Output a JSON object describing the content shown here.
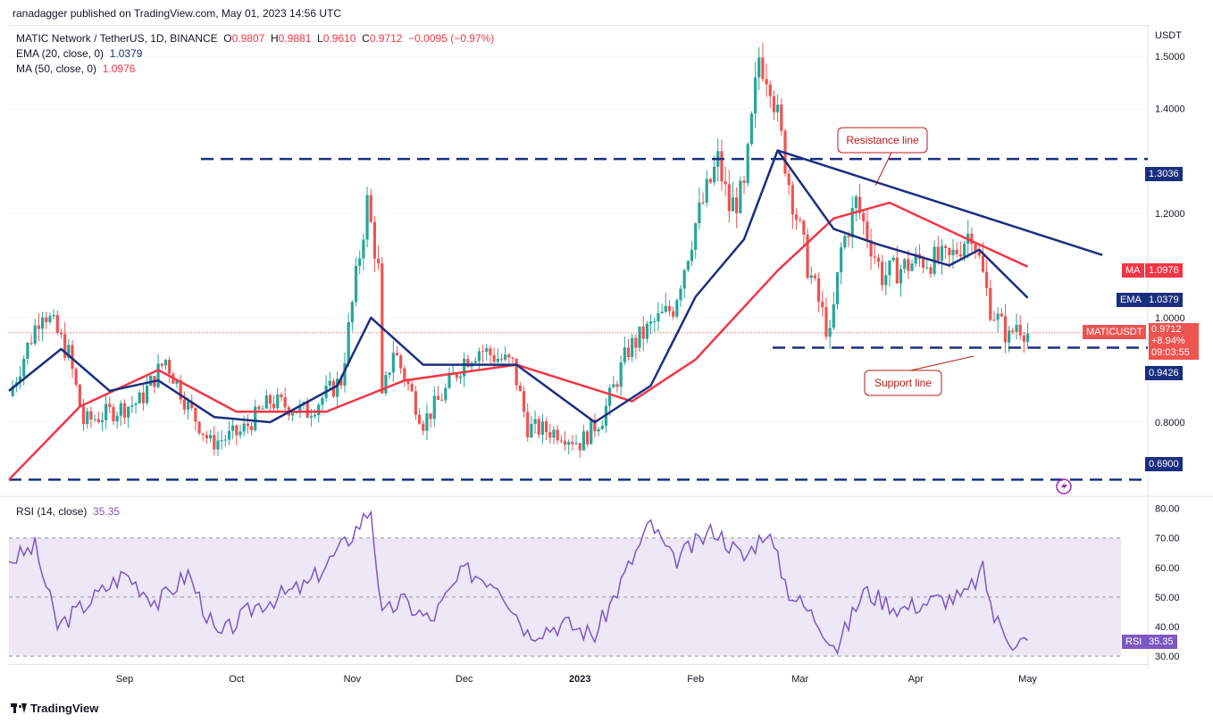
{
  "publisher_line": "ranadagger published on TradingView.com, May 01, 2023 14:56 UTC",
  "legend": {
    "symbol": "MATIC Network / TetherUS, 1D, BINANCE",
    "o_label": "O",
    "o": "0.9807",
    "h_label": "H",
    "h": "0.9881",
    "l_label": "L",
    "l": "0.9610",
    "c_label": "C",
    "c": "0.9712",
    "change": "−0.0095 (−0.97%)",
    "ema_label": "EMA (20, close, 0)",
    "ema_value": "1.0379",
    "ma_label": "MA (50, close, 0)",
    "ma_value": "1.0976",
    "rsi_label": "RSI (14, close)",
    "rsi_value": "35.35"
  },
  "axis": {
    "currency": "USDT",
    "price_ticks": [
      "1.5000",
      "1.4000",
      "1.2000",
      "1.0000",
      "0.8000"
    ],
    "rsi_ticks": [
      "80.00",
      "70.00",
      "60.00",
      "50.00",
      "40.00",
      "30.00"
    ],
    "time_ticks": [
      "Sep",
      "Oct",
      "Nov",
      "Dec",
      "2023",
      "Feb",
      "Mar",
      "Apr",
      "May"
    ]
  },
  "tags": {
    "resistance_level": "1.3036",
    "ma": {
      "label": "MA",
      "value": "1.0976"
    },
    "ema": {
      "label": "EMA",
      "value": "1.0379"
    },
    "symbol": {
      "label": "MATICUSDT",
      "price": "0.9712",
      "change": "+8.94%",
      "countdown": "09:03:55"
    },
    "support_level": "0.9426",
    "bottom_level": "0.6900",
    "rsi": {
      "label": "RSI",
      "value": "35.35"
    }
  },
  "annotations": {
    "resistance": "Resistance line",
    "support": "Support line"
  },
  "footer": "TradingView",
  "colors": {
    "up": "#26a69a",
    "down": "#ef5350",
    "ema": "#1a2f80",
    "ma": "#f23645",
    "level_line": "#1a2f80",
    "rsi_line": "#7e57c2",
    "rsi_band": "#ede7f6"
  },
  "chart_data": [
    {
      "type": "candlestick",
      "title": "MATIC Network / TetherUS, 1D, BINANCE",
      "ylabel": "USDT",
      "ylim": [
        0.66,
        1.56
      ],
      "x_range": [
        "2022-08-01",
        "2023-05-26"
      ],
      "horizontal_levels": [
        1.3036,
        0.9426,
        0.69
      ],
      "resistance_line": {
        "from": [
          "2023-02-23",
          1.32
        ],
        "to": [
          "2023-05-21",
          1.12
        ]
      },
      "ohlc_anchors": [
        [
          "2022-08-01",
          0.85
        ],
        [
          "2022-08-10",
          1.02
        ],
        [
          "2022-08-17",
          0.93
        ],
        [
          "2022-08-21",
          0.8
        ],
        [
          "2022-09-05",
          0.84
        ],
        [
          "2022-09-12",
          0.92
        ],
        [
          "2022-09-18",
          0.83
        ],
        [
          "2022-09-24",
          0.76
        ],
        [
          "2022-10-02",
          0.78
        ],
        [
          "2022-10-10",
          0.84
        ],
        [
          "2022-10-20",
          0.82
        ],
        [
          "2022-10-29",
          0.88
        ],
        [
          "2022-11-05",
          1.22
        ],
        [
          "2022-11-08",
          1.09
        ],
        [
          "2022-11-09",
          0.84
        ],
        [
          "2022-11-12",
          0.94
        ],
        [
          "2022-11-20",
          0.8
        ],
        [
          "2022-11-26",
          0.86
        ],
        [
          "2022-12-01",
          0.92
        ],
        [
          "2022-12-05",
          0.94
        ],
        [
          "2022-12-14",
          0.91
        ],
        [
          "2022-12-18",
          0.79
        ],
        [
          "2022-12-27",
          0.78
        ],
        [
          "2023-01-01",
          0.76
        ],
        [
          "2023-01-07",
          0.81
        ],
        [
          "2023-01-14",
          0.94
        ],
        [
          "2023-01-21",
          0.99
        ],
        [
          "2023-01-26",
          1.02
        ],
        [
          "2023-02-01",
          1.18
        ],
        [
          "2023-02-07",
          1.3
        ],
        [
          "2023-02-10",
          1.21
        ],
        [
          "2023-02-14",
          1.24
        ],
        [
          "2023-02-18",
          1.5
        ],
        [
          "2023-02-21",
          1.46
        ],
        [
          "2023-02-26",
          1.26
        ],
        [
          "2023-03-03",
          1.1
        ],
        [
          "2023-03-09",
          0.96
        ],
        [
          "2023-03-12",
          1.13
        ],
        [
          "2023-03-16",
          1.22
        ],
        [
          "2023-03-23",
          1.08
        ],
        [
          "2023-04-02",
          1.11
        ],
        [
          "2023-04-10",
          1.11
        ],
        [
          "2023-04-16",
          1.17
        ],
        [
          "2023-04-21",
          1.02
        ],
        [
          "2023-04-26",
          0.96
        ],
        [
          "2023-04-28",
          0.99
        ],
        [
          "2023-05-01",
          0.9712
        ]
      ],
      "ema20": [
        [
          "2022-08-01",
          0.86
        ],
        [
          "2022-08-15",
          0.94
        ],
        [
          "2022-08-28",
          0.86
        ],
        [
          "2022-09-10",
          0.88
        ],
        [
          "2022-09-25",
          0.81
        ],
        [
          "2022-10-10",
          0.8
        ],
        [
          "2022-10-28",
          0.87
        ],
        [
          "2022-11-06",
          1.0
        ],
        [
          "2022-11-20",
          0.91
        ],
        [
          "2022-12-05",
          0.91
        ],
        [
          "2022-12-15",
          0.91
        ],
        [
          "2023-01-05",
          0.8
        ],
        [
          "2023-01-20",
          0.87
        ],
        [
          "2023-02-01",
          1.04
        ],
        [
          "2023-02-14",
          1.15
        ],
        [
          "2023-02-23",
          1.32
        ],
        [
          "2023-03-10",
          1.17
        ],
        [
          "2023-03-22",
          1.14
        ],
        [
          "2023-04-10",
          1.1
        ],
        [
          "2023-04-18",
          1.13
        ],
        [
          "2023-05-01",
          1.0379
        ]
      ],
      "ma50": [
        [
          "2022-08-01",
          0.69
        ],
        [
          "2022-08-20",
          0.83
        ],
        [
          "2022-09-10",
          0.9
        ],
        [
          "2022-10-01",
          0.82
        ],
        [
          "2022-10-25",
          0.82
        ],
        [
          "2022-11-15",
          0.88
        ],
        [
          "2022-12-15",
          0.91
        ],
        [
          "2023-01-15",
          0.84
        ],
        [
          "2023-02-01",
          0.92
        ],
        [
          "2023-02-23",
          1.09
        ],
        [
          "2023-03-10",
          1.19
        ],
        [
          "2023-03-25",
          1.22
        ],
        [
          "2023-04-15",
          1.15
        ],
        [
          "2023-05-01",
          1.0976
        ]
      ],
      "rsi14": [
        [
          "2022-08-01",
          62
        ],
        [
          "2022-08-08",
          67
        ],
        [
          "2022-08-14",
          40
        ],
        [
          "2022-08-20",
          46
        ],
        [
          "2022-09-01",
          58
        ],
        [
          "2022-09-10",
          48
        ],
        [
          "2022-09-18",
          58
        ],
        [
          "2022-09-26",
          36
        ],
        [
          "2022-10-06",
          47
        ],
        [
          "2022-10-20",
          54
        ],
        [
          "2022-10-30",
          68
        ],
        [
          "2022-11-06",
          80
        ],
        [
          "2022-11-09",
          43
        ],
        [
          "2022-11-14",
          49
        ],
        [
          "2022-11-22",
          42
        ],
        [
          "2022-12-01",
          59
        ],
        [
          "2022-12-10",
          55
        ],
        [
          "2022-12-18",
          38
        ],
        [
          "2022-12-28",
          41
        ],
        [
          "2023-01-05",
          37
        ],
        [
          "2023-01-14",
          60
        ],
        [
          "2023-01-20",
          75
        ],
        [
          "2023-01-26",
          62
        ],
        [
          "2023-02-06",
          73
        ],
        [
          "2023-02-14",
          63
        ],
        [
          "2023-02-20",
          73
        ],
        [
          "2023-02-26",
          52
        ],
        [
          "2023-03-05",
          43
        ],
        [
          "2023-03-11",
          33
        ],
        [
          "2023-03-18",
          52
        ],
        [
          "2023-03-28",
          46
        ],
        [
          "2023-04-06",
          49
        ],
        [
          "2023-04-14",
          50
        ],
        [
          "2023-04-19",
          59
        ],
        [
          "2023-04-22",
          43
        ],
        [
          "2023-04-27",
          35
        ],
        [
          "2023-05-01",
          35.35
        ]
      ],
      "rsi_ylim": [
        27,
        82
      ],
      "rsi_band": [
        30,
        70
      ],
      "rsi_midline": 50
    }
  ]
}
